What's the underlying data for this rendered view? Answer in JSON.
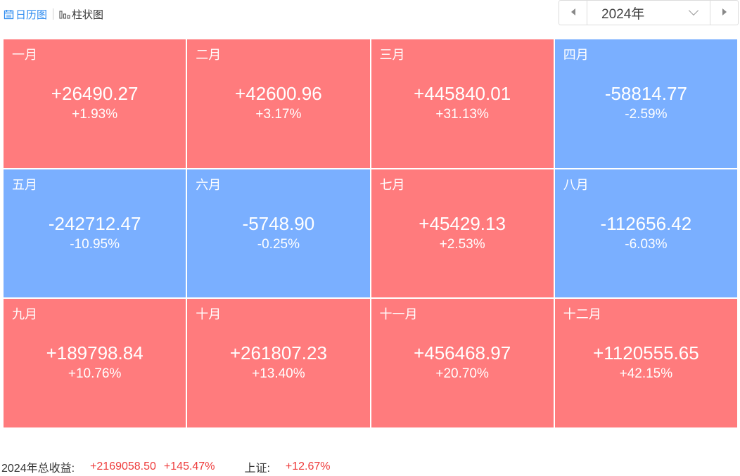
{
  "view_tabs": [
    {
      "label": "日历图",
      "active": true,
      "icon": "calendar-icon"
    },
    {
      "label": "柱状图",
      "active": false,
      "icon": "bar-chart-icon"
    }
  ],
  "year_picker": {
    "value": "2024年"
  },
  "months": [
    {
      "name": "一月",
      "amount": "+26490.27",
      "pct": "+1.93%",
      "sign": "pos"
    },
    {
      "name": "二月",
      "amount": "+42600.96",
      "pct": "+3.17%",
      "sign": "pos"
    },
    {
      "name": "三月",
      "amount": "+445840.01",
      "pct": "+31.13%",
      "sign": "pos"
    },
    {
      "name": "四月",
      "amount": "-58814.77",
      "pct": "-2.59%",
      "sign": "neg"
    },
    {
      "name": "五月",
      "amount": "-242712.47",
      "pct": "-10.95%",
      "sign": "neg"
    },
    {
      "name": "六月",
      "amount": "-5748.90",
      "pct": "-0.25%",
      "sign": "neg"
    },
    {
      "name": "七月",
      "amount": "+45429.13",
      "pct": "+2.53%",
      "sign": "pos"
    },
    {
      "name": "八月",
      "amount": "-112656.42",
      "pct": "-6.03%",
      "sign": "neg"
    },
    {
      "name": "九月",
      "amount": "+189798.84",
      "pct": "+10.76%",
      "sign": "pos"
    },
    {
      "name": "十月",
      "amount": "+261807.23",
      "pct": "+13.40%",
      "sign": "pos"
    },
    {
      "name": "十一月",
      "amount": "+456468.97",
      "pct": "+20.70%",
      "sign": "pos"
    },
    {
      "name": "十二月",
      "amount": "+1120555.65",
      "pct": "+42.15%",
      "sign": "pos"
    }
  ],
  "summary": {
    "total_label": "2024年总收益:",
    "total_amount": "+2169058.50",
    "total_pct": "+145.47%",
    "index_label": "上证:",
    "index_pct": "+12.67%"
  },
  "colors": {
    "positive": "#ff7b7d",
    "negative": "#7aafff",
    "accent": "#2f8cf0",
    "summary_red": "#ee3b3b"
  }
}
